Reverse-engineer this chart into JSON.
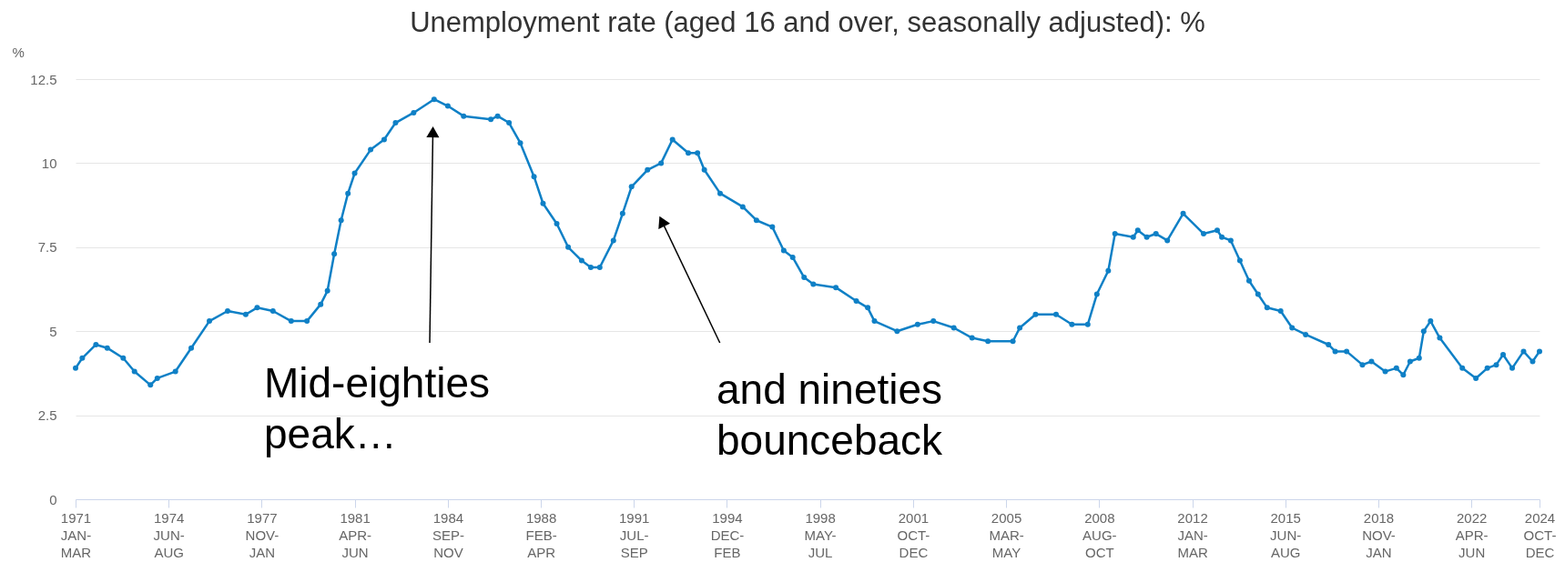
{
  "chart_data": {
    "type": "line",
    "title": "Unemployment rate (aged 16 and over, seasonally adjusted): %",
    "ylabel": "%",
    "x": [
      "1971-01",
      "1971-04",
      "1971-10",
      "1972-03",
      "1972-10",
      "1973-03",
      "1973-10",
      "1974-01",
      "1974-09",
      "1975-04",
      "1975-12",
      "1976-08",
      "1977-04",
      "1977-09",
      "1978-04",
      "1978-12",
      "1979-07",
      "1980-01",
      "1980-04",
      "1980-07",
      "1980-10",
      "1981-01",
      "1981-04",
      "1981-11",
      "1982-05",
      "1982-10",
      "1983-06",
      "1984-03",
      "1984-09",
      "1985-04",
      "1986-04",
      "1986-07",
      "1986-12",
      "1987-05",
      "1987-11",
      "1988-03",
      "1988-09",
      "1989-02",
      "1989-08",
      "1989-12",
      "1990-04",
      "1990-10",
      "1991-02",
      "1991-06",
      "1992-01",
      "1992-07",
      "1992-12",
      "1993-07",
      "1993-11",
      "1994-02",
      "1994-09",
      "1995-07",
      "1996-01",
      "1996-08",
      "1997-01",
      "1997-05",
      "1997-10",
      "1998-02",
      "1998-12",
      "1999-09",
      "2000-02",
      "2000-05",
      "2001-03",
      "2001-12",
      "2002-07",
      "2003-04",
      "2003-12",
      "2004-07",
      "2005-06",
      "2005-09",
      "2006-04",
      "2007-01",
      "2007-08",
      "2008-03",
      "2008-07",
      "2008-12",
      "2009-03",
      "2009-11",
      "2010-01",
      "2010-05",
      "2010-09",
      "2011-02",
      "2011-09",
      "2012-06",
      "2012-12",
      "2013-02",
      "2013-06",
      "2013-10",
      "2014-02",
      "2014-06",
      "2014-10",
      "2015-04",
      "2015-09",
      "2016-03",
      "2017-01",
      "2017-04",
      "2017-09",
      "2018-04",
      "2018-08",
      "2019-02",
      "2019-07",
      "2019-10",
      "2020-01",
      "2020-05",
      "2020-07",
      "2020-10",
      "2021-02",
      "2021-12",
      "2022-06",
      "2022-11",
      "2023-03",
      "2023-06",
      "2023-10",
      "2024-03",
      "2024-07",
      "2024-10"
    ],
    "series": [
      {
        "color": "#0f80c6",
        "values": [
          3.9,
          4.2,
          4.6,
          4.5,
          4.2,
          3.8,
          3.4,
          3.6,
          3.8,
          4.5,
          5.3,
          5.6,
          5.5,
          5.7,
          5.6,
          5.3,
          5.3,
          5.8,
          6.2,
          7.3,
          8.3,
          9.1,
          9.7,
          10.4,
          10.7,
          11.2,
          11.5,
          11.9,
          11.7,
          11.4,
          11.3,
          11.4,
          11.2,
          10.6,
          9.6,
          8.8,
          8.2,
          7.5,
          7.1,
          6.9,
          6.9,
          7.7,
          8.5,
          9.3,
          9.8,
          10.0,
          10.7,
          10.3,
          10.3,
          9.8,
          9.1,
          8.7,
          8.3,
          8.1,
          7.4,
          7.2,
          6.6,
          6.4,
          6.3,
          5.9,
          5.7,
          5.3,
          5.0,
          5.2,
          5.3,
          5.1,
          4.8,
          4.7,
          4.7,
          5.1,
          5.5,
          5.5,
          5.2,
          5.2,
          6.1,
          6.8,
          7.9,
          7.8,
          8.0,
          7.8,
          7.9,
          7.7,
          8.5,
          7.9,
          8.0,
          7.8,
          7.7,
          7.1,
          6.5,
          6.1,
          5.7,
          5.6,
          5.1,
          4.9,
          4.6,
          4.4,
          4.4,
          4.0,
          4.1,
          3.8,
          3.9,
          3.7,
          4.1,
          4.2,
          5.0,
          5.3,
          4.8,
          3.9,
          3.6,
          3.9,
          4.0,
          4.3,
          3.9,
          4.4,
          4.1,
          4.4
        ]
      }
    ],
    "xlim": [
      "1971-01",
      "2024-10"
    ],
    "xticks": [
      {
        "value": "1971-01",
        "label": "1971 JAN-MAR"
      },
      {
        "value": "1974-06",
        "label": "1974 JUN-AUG"
      },
      {
        "value": "1977-11",
        "label": "1977 NOV-JAN"
      },
      {
        "value": "1981-04",
        "label": "1981 APR-JUN"
      },
      {
        "value": "1984-09",
        "label": "1984 SEP-NOV"
      },
      {
        "value": "1988-02",
        "label": "1988 FEB-APR"
      },
      {
        "value": "1991-07",
        "label": "1991 JUL-SEP"
      },
      {
        "value": "1994-12",
        "label": "1994 DEC-FEB"
      },
      {
        "value": "1998-05",
        "label": "1998 MAY-JUL"
      },
      {
        "value": "2001-10",
        "label": "2001 OCT-DEC"
      },
      {
        "value": "2005-03",
        "label": "2005 MAR-MAY"
      },
      {
        "value": "2008-08",
        "label": "2008 AUG-OCT"
      },
      {
        "value": "2012-01",
        "label": "2012 JAN-MAR"
      },
      {
        "value": "2015-06",
        "label": "2015 JUN-AUG"
      },
      {
        "value": "2018-11",
        "label": "2018 NOV-JAN"
      },
      {
        "value": "2022-04",
        "label": "2022 APR-JUN"
      },
      {
        "value": "2024-10",
        "label": "2024 OCT-DEC"
      }
    ],
    "ylim": [
      0,
      12.5
    ],
    "yticks": [
      0,
      2.5,
      5,
      7.5,
      10,
      12.5
    ],
    "grid": "y",
    "marker": "circle",
    "line_style": "solid",
    "annotations": [
      "Mid-eighties\npeak…",
      "and nineties\nbounceback"
    ]
  }
}
